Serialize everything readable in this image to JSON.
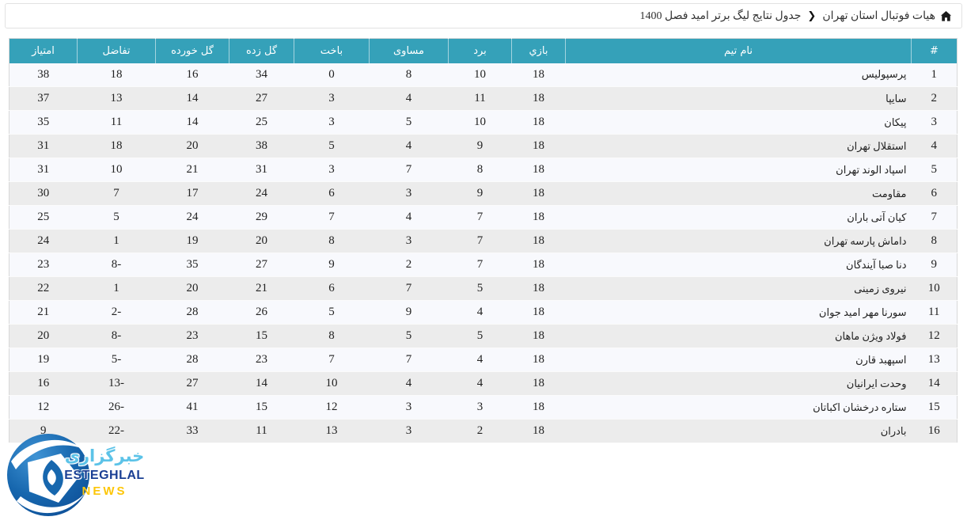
{
  "breadcrumb": {
    "home_icon": "home-icon",
    "parent": "هیات فوتبال استان تهران",
    "separator": "❮",
    "current": "جدول نتایج لیگ برتر امید فصل 1400"
  },
  "table": {
    "col_keys": [
      "rank",
      "team-name",
      "played",
      "wins",
      "draws",
      "losses",
      "goals-for",
      "goals-against",
      "goal-diff",
      "points"
    ],
    "headers": [
      "#",
      "نام تیم",
      "بازي",
      "برد",
      "مساوی",
      "باخت",
      "گل زده",
      "گل خورده",
      "تفاضل",
      "امتیاز"
    ],
    "rows": [
      [
        1,
        "پرسپولیس",
        18,
        10,
        8,
        0,
        34,
        16,
        18,
        38
      ],
      [
        2,
        "سایپا",
        18,
        11,
        4,
        3,
        27,
        14,
        13,
        37
      ],
      [
        3,
        "پیکان",
        18,
        10,
        5,
        3,
        25,
        14,
        11,
        35
      ],
      [
        4,
        "استقلال تهران",
        18,
        9,
        4,
        5,
        38,
        20,
        18,
        31
      ],
      [
        5,
        "اسپاد الوند تهران",
        18,
        8,
        7,
        3,
        31,
        21,
        10,
        31
      ],
      [
        6,
        "مقاومت",
        18,
        9,
        3,
        6,
        24,
        17,
        7,
        30
      ],
      [
        7,
        "کیان آتی باران",
        18,
        7,
        4,
        7,
        29,
        24,
        5,
        25
      ],
      [
        8,
        "داماش پارسه تهران",
        18,
        7,
        3,
        8,
        20,
        19,
        1,
        24
      ],
      [
        9,
        "دنا صبا آیندگان",
        18,
        7,
        2,
        9,
        27,
        35,
        -8,
        23
      ],
      [
        10,
        "نیروی زمینی",
        18,
        5,
        7,
        6,
        21,
        20,
        1,
        22
      ],
      [
        11,
        "سورنا مهر امید جوان",
        18,
        4,
        9,
        5,
        26,
        28,
        -2,
        21
      ],
      [
        12,
        "فولاد ویژن ماهان",
        18,
        5,
        5,
        8,
        15,
        23,
        -8,
        20
      ],
      [
        13,
        "اسپهبد قارن",
        18,
        4,
        7,
        7,
        23,
        28,
        -5,
        19
      ],
      [
        14,
        "وحدت ایرانیان",
        18,
        4,
        4,
        10,
        14,
        27,
        -13,
        16
      ],
      [
        15,
        "ستاره درخشان اکباتان",
        18,
        3,
        3,
        12,
        15,
        41,
        -26,
        12
      ],
      [
        16,
        "بادران",
        18,
        2,
        3,
        13,
        11,
        33,
        -22,
        9
      ]
    ]
  },
  "watermark": {
    "agency_fa": "خبرگزاری",
    "brand_en": "ESTEGHLAL",
    "news": "NEWS",
    "ball_icon": "soccer-ball-icon"
  },
  "colors": {
    "header_bg": "#35a1b9",
    "row_odd": "#f8f9fd",
    "row_even": "#ececec",
    "brand_lightblue": "#5cc3e8",
    "brand_navy": "#1a3f94",
    "brand_yellow": "#fdc608",
    "ball_blue": "#1767ae"
  }
}
